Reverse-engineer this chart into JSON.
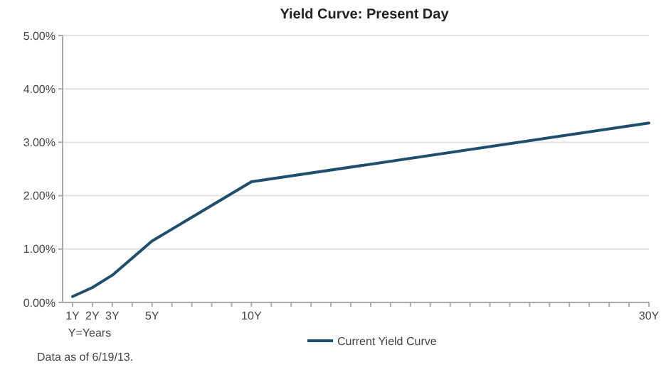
{
  "chart_data": {
    "type": "line",
    "title": "Yield Curve: Present Day",
    "xlabel": "Y=Years",
    "x": [
      1,
      2,
      3,
      5,
      10,
      30
    ],
    "series": [
      {
        "name": "Current Yield Curve",
        "color": "#1f4e6e",
        "values": [
          0.11,
          0.28,
          0.51,
          1.15,
          2.26,
          3.36
        ]
      }
    ],
    "xlim": [
      0.5,
      30
    ],
    "xticks": [
      {
        "value": 1,
        "label": "1Y"
      },
      {
        "value": 2,
        "label": "2Y"
      },
      {
        "value": 3,
        "label": "3Y"
      },
      {
        "value": 4,
        "label": null
      },
      {
        "value": 5,
        "label": "5Y"
      },
      {
        "value": 6,
        "label": null
      },
      {
        "value": 7,
        "label": null
      },
      {
        "value": 8,
        "label": null
      },
      {
        "value": 9,
        "label": null
      },
      {
        "value": 10,
        "label": "10Y"
      },
      {
        "value": 11,
        "label": null
      },
      {
        "value": 12,
        "label": null
      },
      {
        "value": 13,
        "label": null
      },
      {
        "value": 14,
        "label": null
      },
      {
        "value": 15,
        "label": null
      },
      {
        "value": 16,
        "label": null
      },
      {
        "value": 17,
        "label": null
      },
      {
        "value": 18,
        "label": null
      },
      {
        "value": 19,
        "label": null
      },
      {
        "value": 20,
        "label": null
      },
      {
        "value": 21,
        "label": null
      },
      {
        "value": 22,
        "label": null
      },
      {
        "value": 23,
        "label": null
      },
      {
        "value": 24,
        "label": null
      },
      {
        "value": 25,
        "label": null
      },
      {
        "value": 26,
        "label": null
      },
      {
        "value": 27,
        "label": null
      },
      {
        "value": 28,
        "label": null
      },
      {
        "value": 29,
        "label": null
      },
      {
        "value": 30,
        "label": "30Y"
      }
    ],
    "ylim": [
      0,
      5
    ],
    "yticks": [
      {
        "value": 0,
        "label": "0.00%"
      },
      {
        "value": 1,
        "label": "1.00%"
      },
      {
        "value": 2,
        "label": "2.00%"
      },
      {
        "value": 3,
        "label": "3.00%"
      },
      {
        "value": 4,
        "label": "4.00%"
      },
      {
        "value": 5,
        "label": "5.00%"
      }
    ],
    "grid": "y",
    "legend": "bottom",
    "line_style": "solid",
    "annotations": [
      "Data as of 6/19/13."
    ]
  }
}
